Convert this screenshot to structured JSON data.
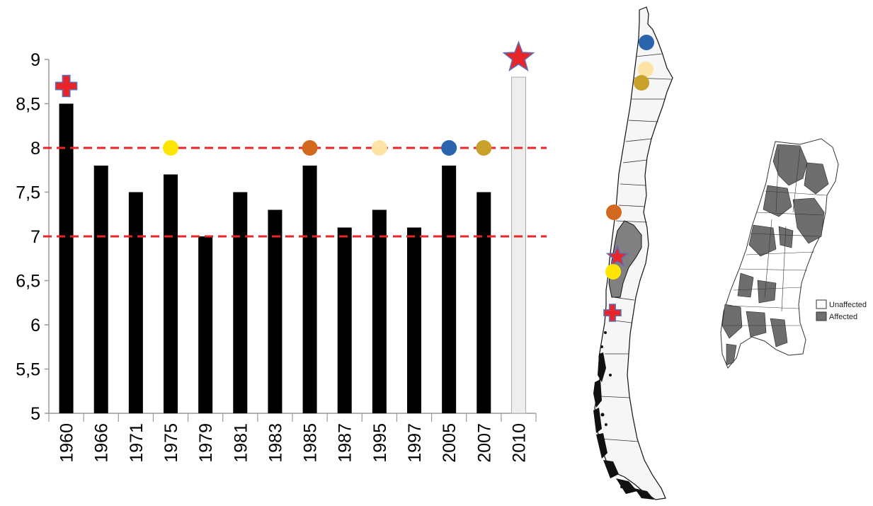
{
  "chart_data": {
    "type": "bar",
    "title": "",
    "xlabel": "",
    "ylabel": "",
    "ylim": [
      5,
      9
    ],
    "yticks": [
      "5",
      "5,5",
      "6",
      "6,5",
      "7",
      "7,5",
      "8",
      "8,5",
      "9"
    ],
    "ytick_values": [
      5,
      5.5,
      6,
      6.5,
      7,
      7.5,
      8,
      8.5,
      9
    ],
    "categories": [
      "1960",
      "1966",
      "1971",
      "1975",
      "1979",
      "1981",
      "1983",
      "1985",
      "1987",
      "1995",
      "1997",
      "2005",
      "2007",
      "2010"
    ],
    "values": [
      8.5,
      7.8,
      7.5,
      7.7,
      7.0,
      7.5,
      7.3,
      7.8,
      7.1,
      7.3,
      7.1,
      7.8,
      7.5,
      8.8
    ],
    "bar_colors": [
      "#000000",
      "#000000",
      "#000000",
      "#000000",
      "#000000",
      "#000000",
      "#000000",
      "#000000",
      "#000000",
      "#000000",
      "#000000",
      "#000000",
      "#000000",
      "#eeeeee"
    ],
    "reference_lines": [
      {
        "value": 8,
        "style": "dashed",
        "color": "#e8262a"
      },
      {
        "value": 7,
        "style": "dashed",
        "color": "#e8262a"
      }
    ],
    "markers": [
      {
        "category": "1960",
        "value": 8.7,
        "shape": "cross",
        "color": "#e8262a"
      },
      {
        "category": "1975",
        "value": 8.0,
        "shape": "circle",
        "color": "#ffe600"
      },
      {
        "category": "1985",
        "value": 8.0,
        "shape": "circle",
        "color": "#d2691e"
      },
      {
        "category": "1995",
        "value": 8.0,
        "shape": "circle",
        "color": "#fde4a6"
      },
      {
        "category": "2005",
        "value": 8.0,
        "shape": "circle",
        "color": "#2a64ad"
      },
      {
        "category": "2007",
        "value": 8.0,
        "shape": "circle",
        "color": "#c9a02a"
      },
      {
        "category": "2010",
        "value": 9.02,
        "shape": "star",
        "color": "#e8262a"
      }
    ]
  },
  "map": {
    "country_fill": "#f6f6f6",
    "affected_fill": "#808080",
    "event_markers": [
      {
        "shape": "circle",
        "color": "#2a64ad"
      },
      {
        "shape": "circle",
        "color": "#fde4a6"
      },
      {
        "shape": "circle",
        "color": "#c9a02a"
      },
      {
        "shape": "circle",
        "color": "#d2691e"
      },
      {
        "shape": "star",
        "color": "#e8262a"
      },
      {
        "shape": "circle",
        "color": "#ffe600"
      },
      {
        "shape": "cross",
        "color": "#e8262a"
      }
    ]
  },
  "inset": {
    "legend": [
      {
        "label": "Unaffected",
        "color": "#ffffff"
      },
      {
        "label": "Affected",
        "color": "#6e6e6e"
      }
    ]
  }
}
